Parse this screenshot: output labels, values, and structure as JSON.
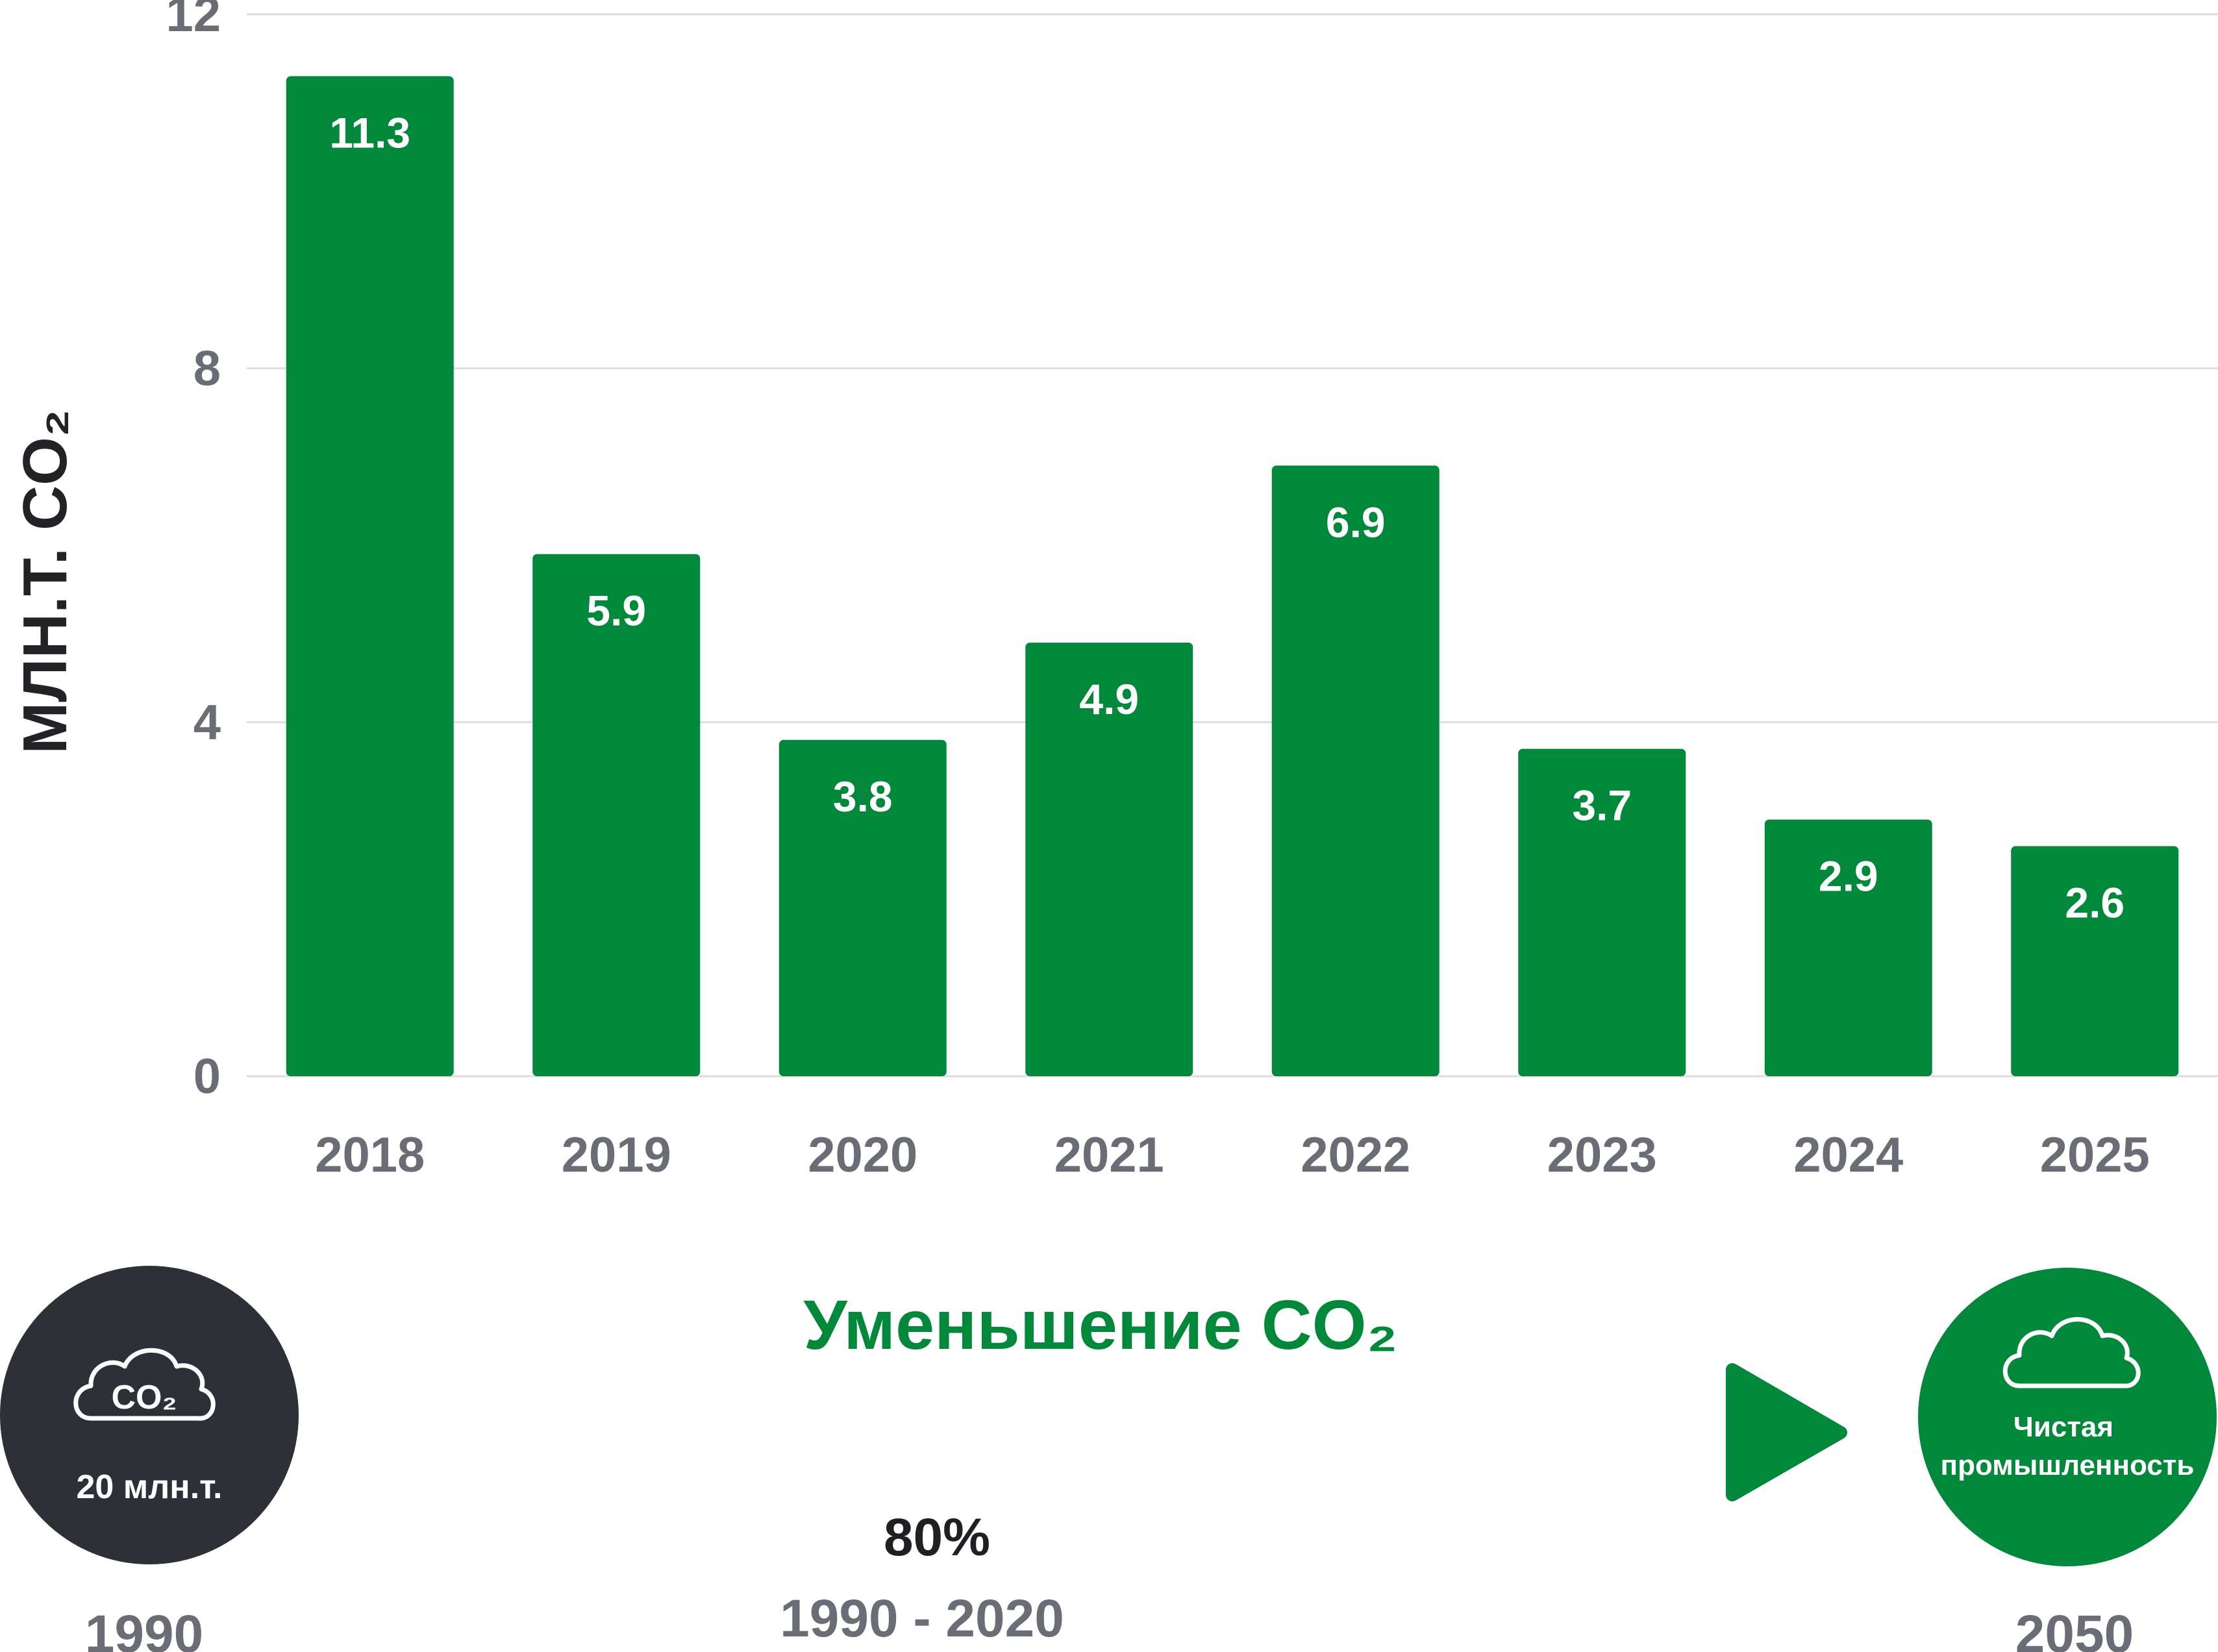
{
  "chart_data": {
    "type": "bar",
    "categories": [
      "2018",
      "2019",
      "2020",
      "2021",
      "2022",
      "2023",
      "2024",
      "2025"
    ],
    "values": [
      11.3,
      5.9,
      3.8,
      4.9,
      6.9,
      3.7,
      2.9,
      2.6
    ],
    "data_labels": [
      "11.3",
      "5.9",
      "3.8",
      "4.9",
      "6.9",
      "3.7",
      "2.9",
      "2.6"
    ],
    "yticks": [
      0,
      4,
      8,
      12
    ],
    "ylim": [
      0,
      12
    ],
    "ylabel": "МЛН.Т. CO₂",
    "grid": true,
    "bar_color": "#02883a"
  },
  "timeline": {
    "title": "Уменьшение CO₂",
    "start": {
      "icon_text": "CO₂",
      "amount": "20 млн.т.",
      "year": "1990",
      "color": "#2e3038",
      "icon": "co2-cloud-icon"
    },
    "end": {
      "line1": "Чистая",
      "line2": "промышленность",
      "year": "2050",
      "color": "#02883a",
      "icon": "cloud-icon"
    },
    "reduction": "80%",
    "period": "1990 - 2020",
    "accent_color": "#02883a"
  }
}
